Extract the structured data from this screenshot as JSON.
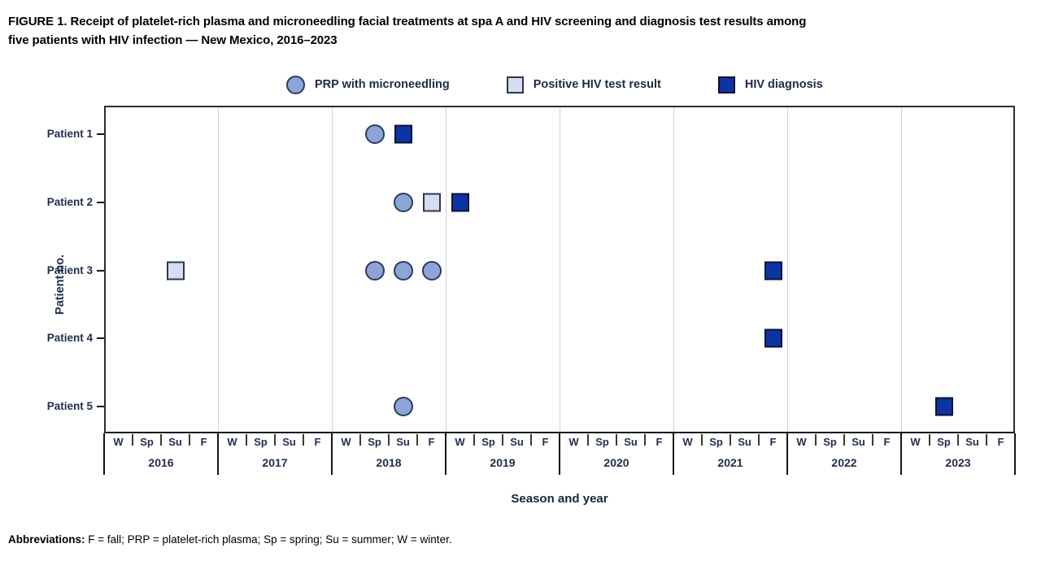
{
  "figure": {
    "title_line1": "FIGURE 1. Receipt of platelet-rich plasma and microneedling facial treatments at spa A and HIV screening and diagnosis test results among",
    "title_line2": "five patients with HIV infection — New Mexico, 2016–2023",
    "abbreviations_label": "Abbreviations:",
    "abbreviations_text": " F = fall; PRP = platelet-rich plasma; Sp = spring; Su = summer; W = winter."
  },
  "legend": {
    "items": [
      {
        "id": "prp",
        "label": "PRP with microneedling",
        "shape": "circle",
        "fill": "#8da4d6",
        "border": "#2c3a63"
      },
      {
        "id": "positive_test",
        "label": "Positive HIV test result",
        "shape": "square",
        "fill": "#d6ddf0",
        "border": "#30374b"
      },
      {
        "id": "diagnosis",
        "label": "HIV diagnosis",
        "shape": "square",
        "fill": "#0d34a3",
        "border": "#0c1130"
      }
    ]
  },
  "chart_data": {
    "type": "scatter",
    "xlabel": "Season and year",
    "ylabel": "Patient no.",
    "years": [
      2016,
      2017,
      2018,
      2019,
      2020,
      2021,
      2022,
      2023
    ],
    "seasons": [
      "W",
      "Sp",
      "Su",
      "F"
    ],
    "patients": [
      "Patient 1",
      "Patient 2",
      "Patient 3",
      "Patient 4",
      "Patient 5"
    ],
    "legend_position": "top",
    "grid": "vertical-year-boundaries",
    "points": [
      {
        "patient": "Patient 1",
        "type": "prp",
        "year": 2018,
        "season": "Sp"
      },
      {
        "patient": "Patient 1",
        "type": "diagnosis",
        "year": 2018,
        "season": "Su"
      },
      {
        "patient": "Patient 2",
        "type": "prp",
        "year": 2018,
        "season": "Su"
      },
      {
        "patient": "Patient 2",
        "type": "positive_test",
        "year": 2018,
        "season": "F"
      },
      {
        "patient": "Patient 2",
        "type": "diagnosis",
        "year": 2019,
        "season": "W"
      },
      {
        "patient": "Patient 3",
        "type": "positive_test",
        "year": 2016,
        "season": "Su"
      },
      {
        "patient": "Patient 3",
        "type": "prp",
        "year": 2018,
        "season": "Sp"
      },
      {
        "patient": "Patient 3",
        "type": "prp",
        "year": 2018,
        "season": "Su"
      },
      {
        "patient": "Patient 3",
        "type": "prp",
        "year": 2018,
        "season": "F"
      },
      {
        "patient": "Patient 3",
        "type": "diagnosis",
        "year": 2021,
        "season": "F"
      },
      {
        "patient": "Patient 4",
        "type": "diagnosis",
        "year": 2021,
        "season": "F"
      },
      {
        "patient": "Patient 5",
        "type": "prp",
        "year": 2018,
        "season": "Su"
      },
      {
        "patient": "Patient 5",
        "type": "diagnosis",
        "year": 2023,
        "season": "Sp"
      }
    ]
  }
}
